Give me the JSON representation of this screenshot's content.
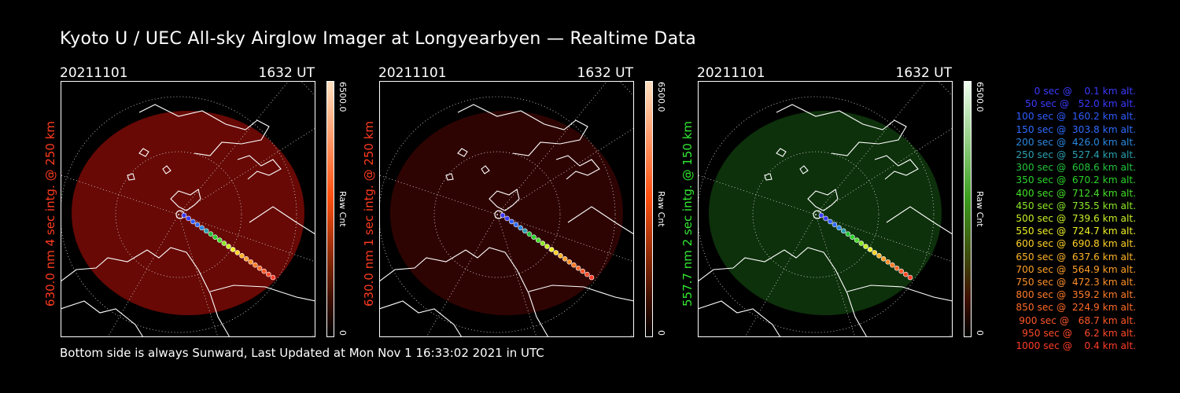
{
  "title": "Kyoto U / UEC All-sky Airglow Imager at Longyearbyen — Realtime Data",
  "footer": "Bottom side is always Sunward, Last Updated at Mon Nov  1 16:33:02 2021 in UTC",
  "panels": [
    {
      "date": "20211101",
      "time": "1632 UT",
      "side_label": "630.0 nm 4 sec intg. @ 250 km",
      "label_color": "#ff3b1f",
      "cbar_max": "6500.0",
      "cbar_unit": "Raw Cnt",
      "cbar_min": "0",
      "airglow_color": "#7a0a06",
      "airglow_opacity": 0.85,
      "cbar_top_color": "#ffe0c0",
      "cbar_mid_color": "#ff5010"
    },
    {
      "date": "20211101",
      "time": "1632 UT",
      "side_label": "630.0 nm 1 sec intg. @ 250 km",
      "label_color": "#ff3b1f",
      "cbar_max": "6500.0",
      "cbar_unit": "Raw Cnt",
      "cbar_min": "0",
      "airglow_color": "#3a0504",
      "airglow_opacity": 0.8,
      "cbar_top_color": "#ffe0c0",
      "cbar_mid_color": "#ff5010"
    },
    {
      "date": "20211101",
      "time": "1632 UT",
      "side_label": "557.7 nm 2 sec intg. @ 150 km",
      "label_color": "#33e833",
      "cbar_max": "6500.0",
      "cbar_unit": "Raw Cnt",
      "cbar_min": "0",
      "airglow_color": "#0f3a0d",
      "airglow_opacity": 0.85,
      "cbar_top_color": "#f0fff0",
      "cbar_mid_color": "#3ca020"
    }
  ],
  "legend": [
    {
      "text": "   0 sec @    0.1 km alt.",
      "color": "#3a3aff"
    },
    {
      "text": "  50 sec @   52.0 km alt.",
      "color": "#3a3aff"
    },
    {
      "text": " 100 sec @  160.2 km alt.",
      "color": "#2f5cff"
    },
    {
      "text": " 150 sec @  303.8 km alt.",
      "color": "#2f6cff"
    },
    {
      "text": " 200 sec @  426.0 km alt.",
      "color": "#2a88e0"
    },
    {
      "text": " 250 sec @  527.4 km alt.",
      "color": "#2aa0b0"
    },
    {
      "text": " 300 sec @  608.6 km alt.",
      "color": "#22c43a"
    },
    {
      "text": " 350 sec @  670.2 km alt.",
      "color": "#2ad42a"
    },
    {
      "text": " 400 sec @  712.4 km alt.",
      "color": "#44e028"
    },
    {
      "text": " 450 sec @  735.5 km alt.",
      "color": "#8ae828"
    },
    {
      "text": " 500 sec @  739.6 km alt.",
      "color": "#c8ee28"
    },
    {
      "text": " 550 sec @  724.7 km alt.",
      "color": "#eef028"
    },
    {
      "text": " 600 sec @  690.8 km alt.",
      "color": "#ffd228"
    },
    {
      "text": " 650 sec @  637.6 km alt.",
      "color": "#ffb428"
    },
    {
      "text": " 700 sec @  564.9 km alt.",
      "color": "#ffa028"
    },
    {
      "text": " 750 sec @  472.3 km alt.",
      "color": "#ff9028"
    },
    {
      "text": " 800 sec @  359.2 km alt.",
      "color": "#ff7c28"
    },
    {
      "text": " 850 sec @  224.9 km alt.",
      "color": "#ff6a28"
    },
    {
      "text": " 900 sec @   68.7 km alt.",
      "color": "#ff5828"
    },
    {
      "text": " 950 sec @    6.2 km alt.",
      "color": "#ff4a28"
    },
    {
      "text": "1000 sec @    0.4 km alt.",
      "color": "#ff3c28"
    }
  ]
}
